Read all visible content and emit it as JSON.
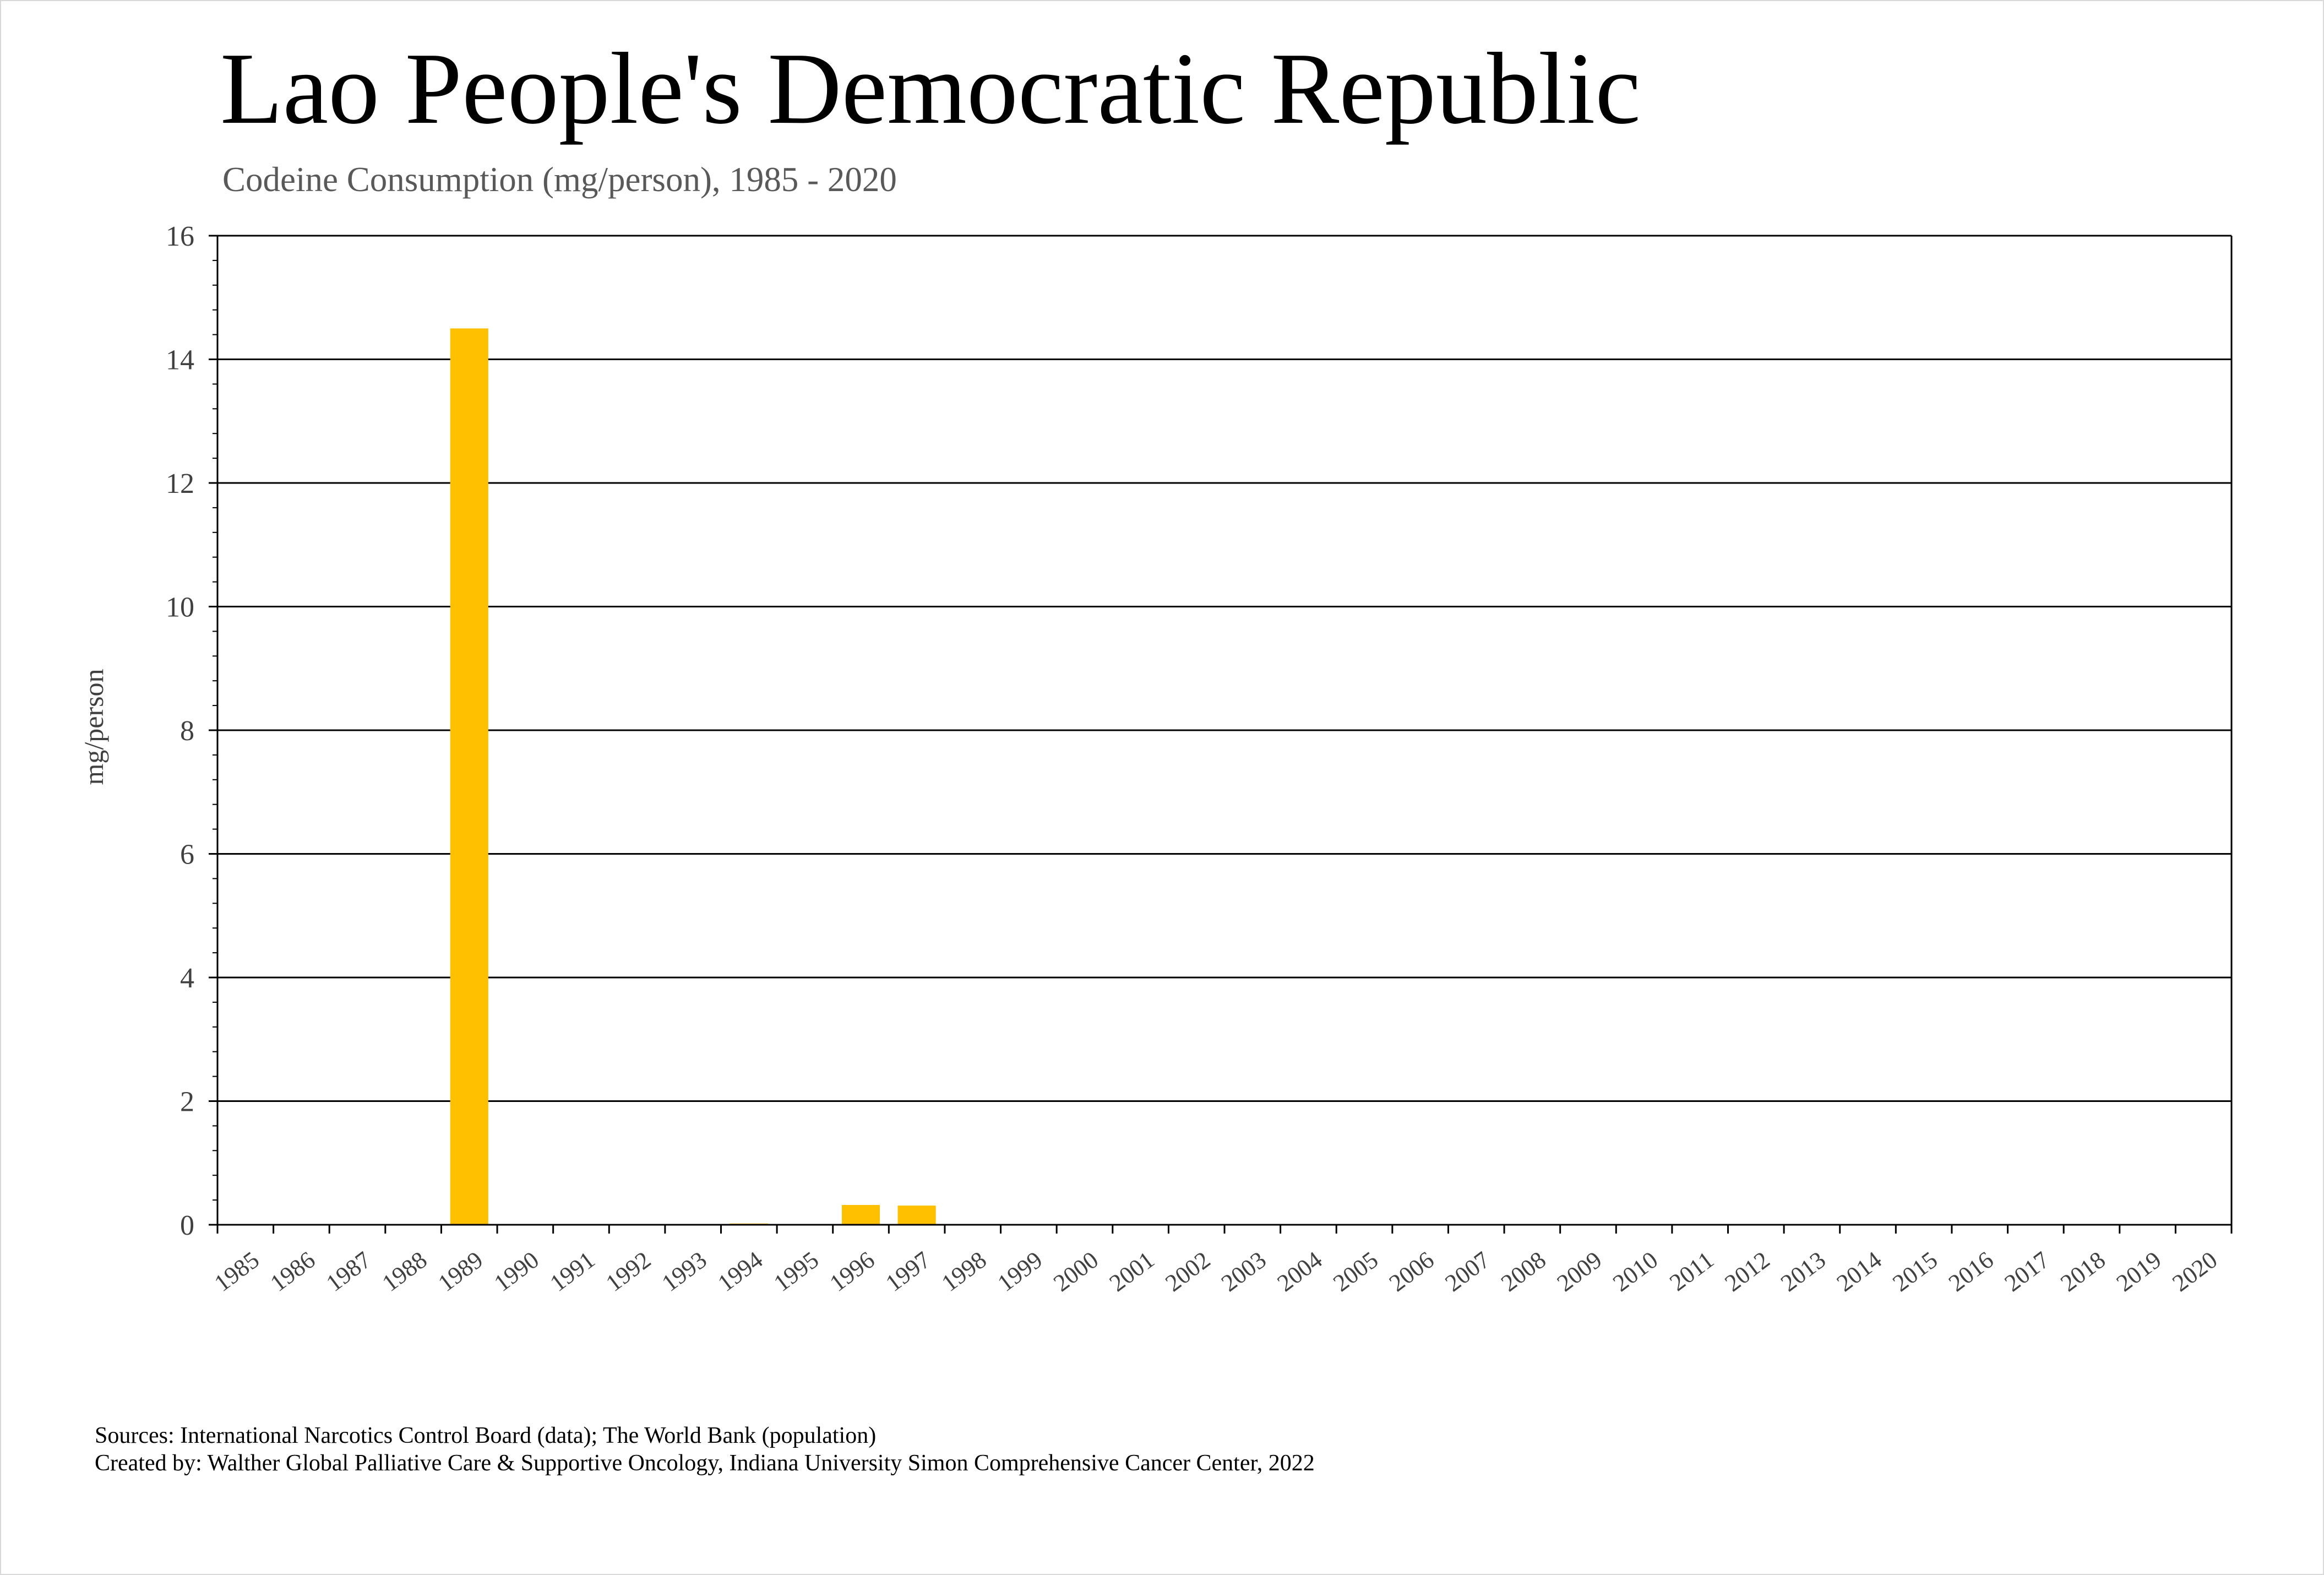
{
  "chart_data": {
    "type": "bar",
    "title": "Lao People's Democratic Republic",
    "subtitle": "Codeine Consumption (mg/person), 1985 - 2020",
    "xlabel": "",
    "ylabel": "mg/person",
    "ylim": [
      0,
      16
    ],
    "yticks": [
      0,
      2,
      4,
      6,
      8,
      10,
      12,
      14,
      16
    ],
    "grid": "horizontal major gridlines",
    "bar_color": "#FFC000",
    "categories": [
      "1985",
      "1986",
      "1987",
      "1988",
      "1989",
      "1990",
      "1991",
      "1992",
      "1993",
      "1994",
      "1995",
      "1996",
      "1997",
      "1998",
      "1999",
      "2000",
      "2001",
      "2002",
      "2003",
      "2004",
      "2005",
      "2006",
      "2007",
      "2008",
      "2009",
      "2010",
      "2011",
      "2012",
      "2013",
      "2014",
      "2015",
      "2016",
      "2017",
      "2018",
      "2019",
      "2020"
    ],
    "values": [
      0,
      0,
      0,
      0,
      14.5,
      0,
      0,
      0,
      0,
      0.02,
      0,
      0.32,
      0.31,
      0,
      0,
      0,
      0.01,
      0.01,
      0.01,
      0.01,
      0.01,
      0.01,
      0,
      0,
      0,
      0,
      0,
      0,
      0,
      0,
      0,
      0,
      0,
      0,
      0,
      0
    ]
  },
  "footer": {
    "sources": "Sources: International Narcotics Control Board (data); The World Bank (population)",
    "created_by": "Created by: Walther Global Palliative Care & Supportive Oncology, Indiana University Simon Comprehensive Cancer Center, 2022"
  }
}
